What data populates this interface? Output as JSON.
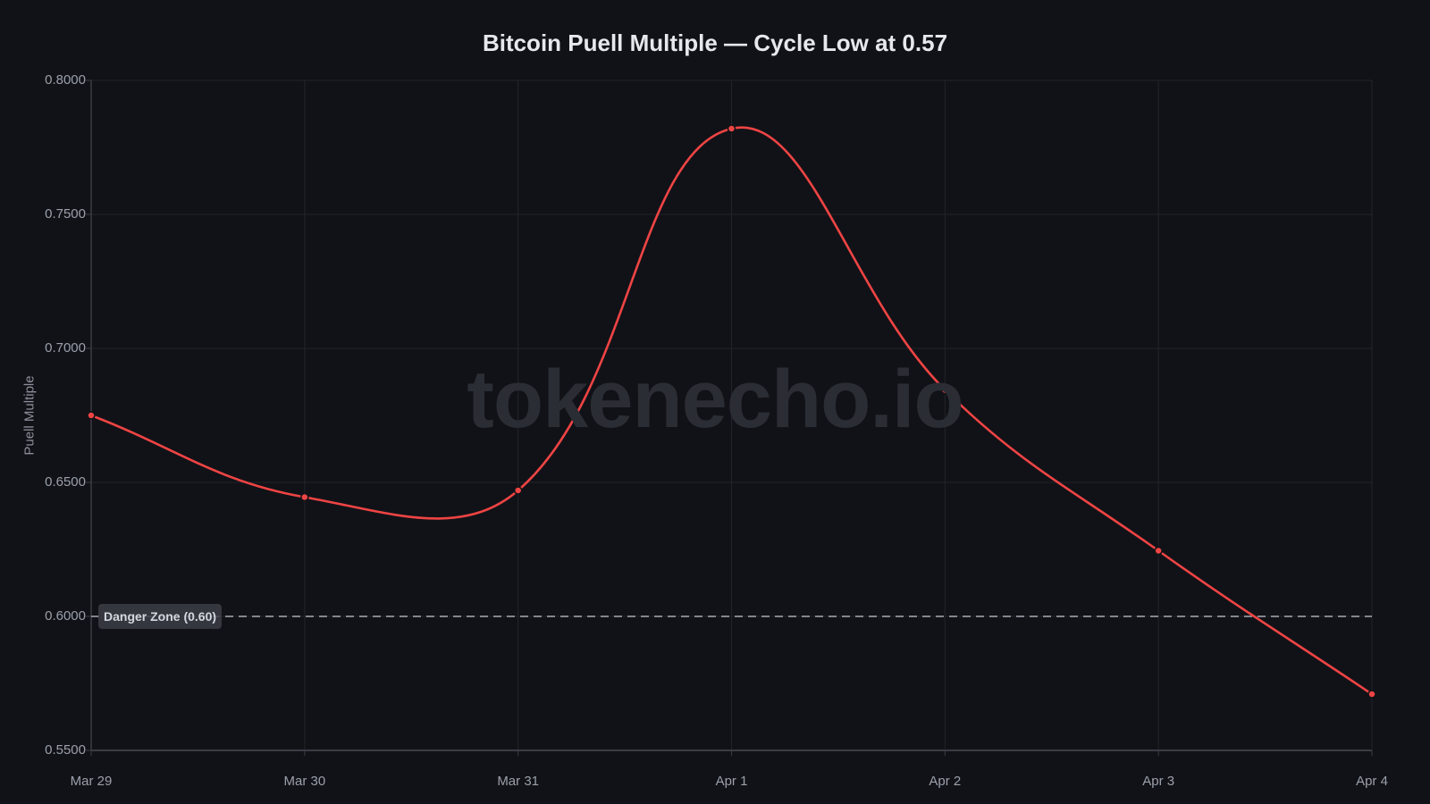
{
  "chart_data": {
    "type": "line",
    "title": "Bitcoin Puell Multiple — Cycle Low at 0.57",
    "xlabel": "",
    "ylabel": "Puell Multiple",
    "categories": [
      "Mar 29",
      "Mar 30",
      "Mar 31",
      "Apr 1",
      "Apr 2",
      "Apr 3",
      "Apr 4"
    ],
    "series": [
      {
        "name": "Puell Multiple",
        "color": "#ef4444",
        "values": [
          0.675,
          0.6445,
          0.647,
          0.782,
          0.6845,
          0.6245,
          0.571
        ]
      }
    ],
    "ylim": [
      0.55,
      0.8
    ],
    "yticks": [
      "0.8000",
      "0.7500",
      "0.7000",
      "0.6500",
      "0.6000",
      "0.5500"
    ],
    "ytick_values": [
      0.8,
      0.75,
      0.7,
      0.65,
      0.6,
      0.55
    ],
    "grid": true,
    "legend": "none",
    "annotations": [
      {
        "type": "hline",
        "y": 0.6,
        "label": "Danger Zone (0.60)",
        "style": "dashed",
        "color": "#a9adb6"
      }
    ],
    "watermark": "tokenecho.io"
  }
}
